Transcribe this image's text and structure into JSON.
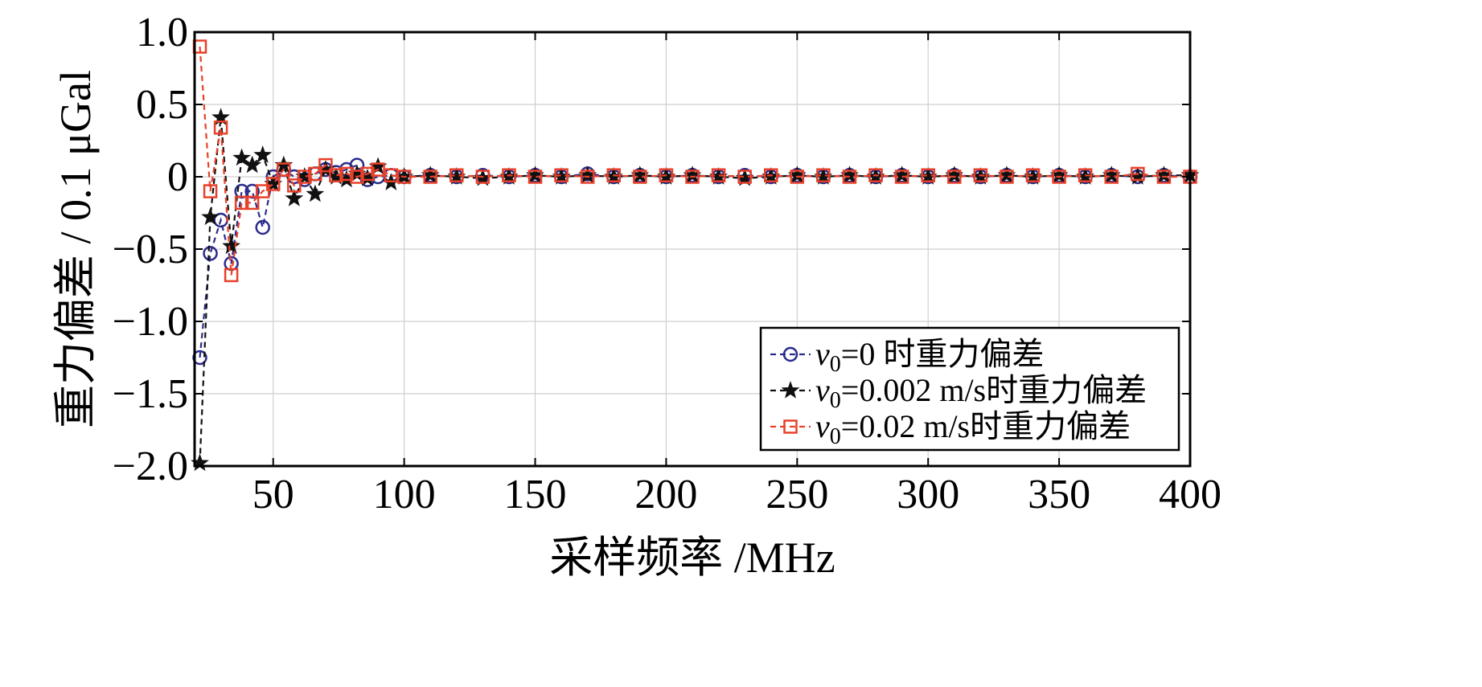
{
  "chart_data": {
    "type": "line",
    "title": "",
    "xlabel": "采样频率 /MHz",
    "ylabel": "重力偏差 / 0.1 μGal",
    "xlim": [
      20,
      400
    ],
    "ylim": [
      -2.0,
      1.0
    ],
    "grid": true,
    "legend_position": "lower-right",
    "x_ticks": [
      50,
      100,
      150,
      200,
      250,
      300,
      350,
      400
    ],
    "x_tick_labels": [
      "50",
      "100",
      "150",
      "200",
      "250",
      "300",
      "350",
      "400"
    ],
    "y_ticks": [
      1.0,
      0.5,
      0,
      -0.5,
      -1.0,
      -1.5,
      -2.0
    ],
    "y_tick_labels": [
      "1.0",
      "0.5",
      "0",
      "−0.5",
      "−1.0",
      "−1.5",
      "−2.0"
    ],
    "series": [
      {
        "name": "v0=0 时重力偏差",
        "legend_var": "v",
        "legend_sub": "0",
        "legend_rest": "=0 时重力偏差",
        "color": "#2b2b8c",
        "marker": "circle",
        "points": [
          [
            22,
            -1.25
          ],
          [
            26,
            -0.53
          ],
          [
            30,
            -0.3
          ],
          [
            34,
            -0.6
          ],
          [
            38,
            -0.1
          ],
          [
            42,
            -0.1
          ],
          [
            46,
            -0.35
          ],
          [
            50,
            0.0
          ],
          [
            54,
            0.05
          ],
          [
            58,
            0.0
          ],
          [
            62,
            -0.02
          ],
          [
            66,
            0.02
          ],
          [
            70,
            0.05
          ],
          [
            74,
            0.03
          ],
          [
            78,
            0.05
          ],
          [
            82,
            0.08
          ],
          [
            86,
            -0.02
          ],
          [
            90,
            0.0
          ],
          [
            95,
            0.01
          ],
          [
            100,
            0.0
          ],
          [
            110,
            0.01
          ],
          [
            120,
            0.0
          ],
          [
            130,
            0.01
          ],
          [
            140,
            0.0
          ],
          [
            150,
            0.01
          ],
          [
            160,
            0.0
          ],
          [
            170,
            0.02
          ],
          [
            180,
            0.0
          ],
          [
            190,
            0.01
          ],
          [
            200,
            0.0
          ],
          [
            210,
            0.01
          ],
          [
            220,
            0.0
          ],
          [
            230,
            0.01
          ],
          [
            240,
            0.0
          ],
          [
            250,
            0.01
          ],
          [
            260,
            0.0
          ],
          [
            270,
            0.01
          ],
          [
            280,
            0.0
          ],
          [
            290,
            0.01
          ],
          [
            300,
            0.0
          ],
          [
            310,
            0.01
          ],
          [
            320,
            0.0
          ],
          [
            330,
            0.01
          ],
          [
            340,
            0.0
          ],
          [
            350,
            0.01
          ],
          [
            360,
            0.0
          ],
          [
            370,
            0.01
          ],
          [
            380,
            0.0
          ],
          [
            390,
            0.01
          ],
          [
            400,
            0.0
          ]
        ]
      },
      {
        "name": "v0=0.002 m/s时重力偏差",
        "legend_var": "v",
        "legend_sub": "0",
        "legend_rest": "=0.002 m/s时重力偏差",
        "color": "#111111",
        "marker": "star",
        "points": [
          [
            22,
            -1.98
          ],
          [
            26,
            -0.28
          ],
          [
            30,
            0.41
          ],
          [
            34,
            -0.48
          ],
          [
            38,
            0.13
          ],
          [
            42,
            0.08
          ],
          [
            46,
            0.15
          ],
          [
            50,
            -0.05
          ],
          [
            54,
            0.08
          ],
          [
            58,
            -0.15
          ],
          [
            62,
            0.0
          ],
          [
            66,
            -0.12
          ],
          [
            70,
            0.05
          ],
          [
            74,
            0.0
          ],
          [
            78,
            -0.02
          ],
          [
            82,
            0.02
          ],
          [
            86,
            -0.01
          ],
          [
            90,
            0.07
          ],
          [
            95,
            -0.04
          ],
          [
            100,
            0.0
          ],
          [
            110,
            0.01
          ],
          [
            120,
            0.0
          ],
          [
            130,
            -0.01
          ],
          [
            140,
            0.0
          ],
          [
            150,
            0.01
          ],
          [
            160,
            0.0
          ],
          [
            170,
            0.01
          ],
          [
            180,
            0.0
          ],
          [
            190,
            0.01
          ],
          [
            200,
            0.0
          ],
          [
            210,
            0.01
          ],
          [
            220,
            0.0
          ],
          [
            230,
            -0.01
          ],
          [
            240,
            0.0
          ],
          [
            250,
            0.01
          ],
          [
            260,
            0.0
          ],
          [
            270,
            0.01
          ],
          [
            280,
            0.0
          ],
          [
            290,
            0.01
          ],
          [
            300,
            0.0
          ],
          [
            310,
            0.01
          ],
          [
            320,
            0.0
          ],
          [
            330,
            0.01
          ],
          [
            340,
            0.0
          ],
          [
            350,
            0.01
          ],
          [
            360,
            0.0
          ],
          [
            370,
            0.01
          ],
          [
            380,
            0.0
          ],
          [
            390,
            0.01
          ],
          [
            400,
            0.01
          ]
        ]
      },
      {
        "name": "v0=0.02 m/s时重力偏差",
        "legend_var": "v",
        "legend_sub": "0",
        "legend_rest": "=0.02 m/s时重力偏差",
        "color": "#e8402a",
        "marker": "square",
        "points": [
          [
            22,
            0.9
          ],
          [
            26,
            -0.1
          ],
          [
            30,
            0.34
          ],
          [
            34,
            -0.68
          ],
          [
            38,
            -0.18
          ],
          [
            42,
            -0.18
          ],
          [
            46,
            -0.1
          ],
          [
            50,
            -0.05
          ],
          [
            54,
            0.05
          ],
          [
            58,
            -0.06
          ],
          [
            62,
            0.0
          ],
          [
            66,
            0.02
          ],
          [
            70,
            0.08
          ],
          [
            74,
            0.01
          ],
          [
            78,
            0.02
          ],
          [
            82,
            0.0
          ],
          [
            86,
            0.02
          ],
          [
            90,
            0.05
          ],
          [
            95,
            0.01
          ],
          [
            100,
            0.0
          ],
          [
            110,
            0.0
          ],
          [
            120,
            0.01
          ],
          [
            130,
            0.0
          ],
          [
            140,
            0.01
          ],
          [
            150,
            0.0
          ],
          [
            160,
            0.01
          ],
          [
            170,
            0.0
          ],
          [
            180,
            0.01
          ],
          [
            190,
            0.0
          ],
          [
            200,
            0.01
          ],
          [
            210,
            0.0
          ],
          [
            220,
            0.01
          ],
          [
            230,
            0.0
          ],
          [
            240,
            0.01
          ],
          [
            250,
            0.0
          ],
          [
            260,
            0.01
          ],
          [
            270,
            0.0
          ],
          [
            280,
            0.01
          ],
          [
            290,
            0.0
          ],
          [
            300,
            0.01
          ],
          [
            310,
            0.0
          ],
          [
            320,
            0.01
          ],
          [
            330,
            0.0
          ],
          [
            340,
            0.01
          ],
          [
            350,
            0.0
          ],
          [
            360,
            0.01
          ],
          [
            370,
            0.0
          ],
          [
            380,
            0.02
          ],
          [
            390,
            0.0
          ],
          [
            400,
            0.0
          ]
        ]
      }
    ]
  }
}
